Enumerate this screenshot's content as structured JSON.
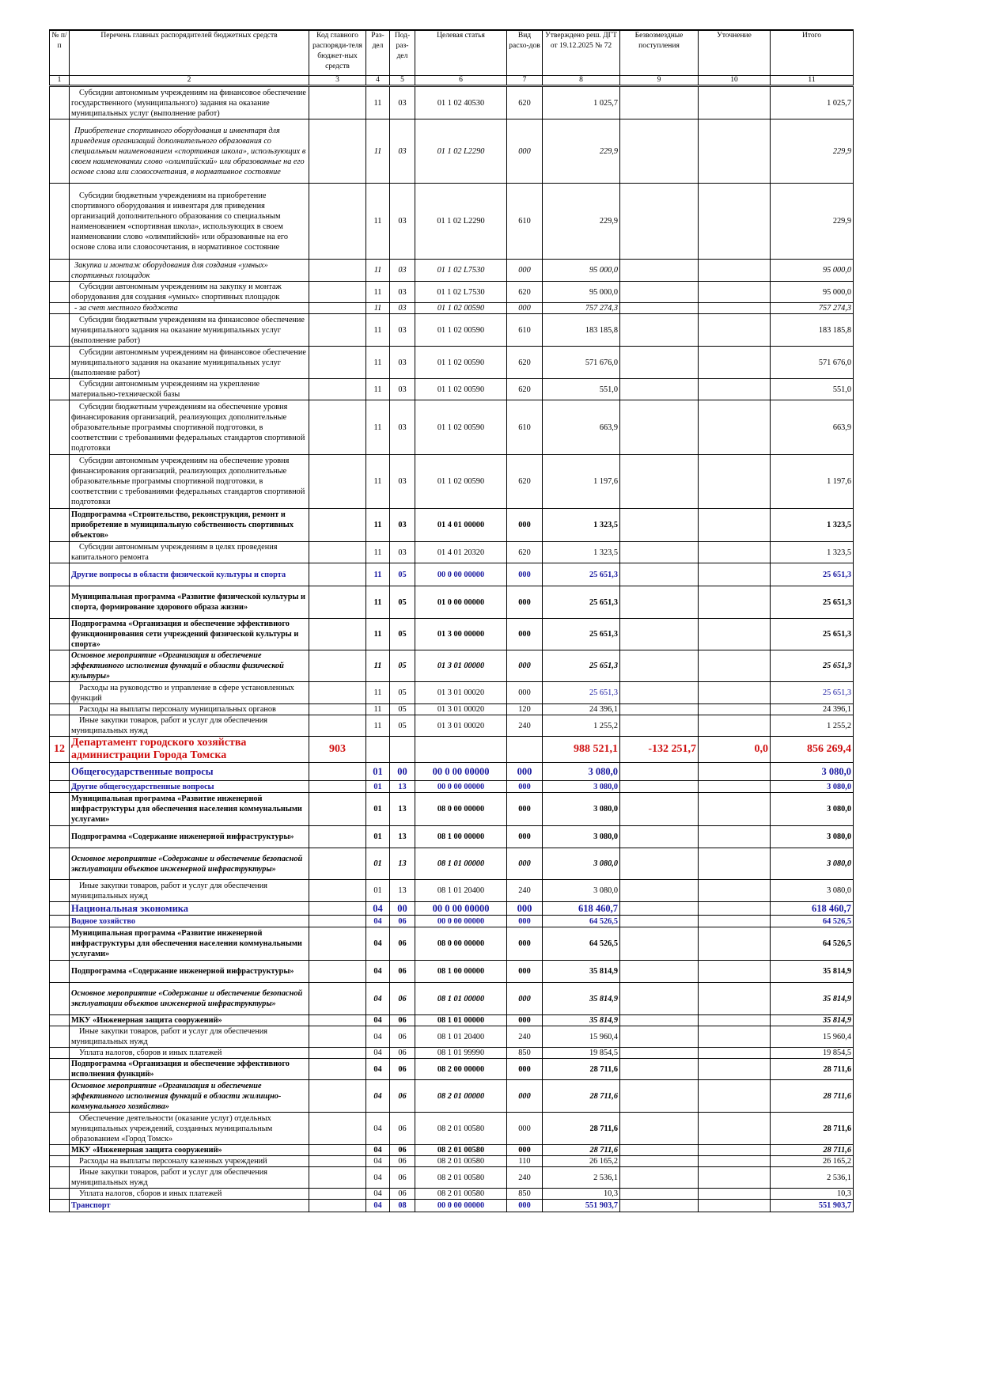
{
  "table": {
    "header": [
      "№ п/п",
      "Перечень главных распорядителей бюджетных средств",
      "Код главного распоряди-теля бюджет-ных средств",
      "Раз-дел",
      "Под-раз-дел",
      "Целевая статья",
      "Вид расхо-дов",
      "Утверждено реш. ДГТ от 19.12.2025 № 72",
      "Безвозмездные поступления",
      "Уточнение",
      "Итого"
    ],
    "numbers": [
      "1",
      "2",
      "3",
      "4",
      "5",
      "6",
      "7",
      "8",
      "9",
      "10",
      "11"
    ],
    "rows": [
      [
        null,
        "Субсидии автономным учреждениям на финансовое обеспечение государственного (муниципального) задания на оказание муниципальных услуг (выполнение работ)",
        null,
        "11",
        "03",
        "01 1 02 40530",
        "620",
        "1 025,7",
        null,
        null,
        "1 025,7"
      ],
      [
        null,
        "Приобретение спортивного оборудования и инвентаря для приведения организаций дополнительного образования со специальным наименованием «спортивная школа», использующих в своем наименовании слово «олимпийский» или образованные на его основе слова или словосочетания, в нормативное состояние",
        null,
        "11",
        "03",
        "01 1 02 L2290",
        "000",
        "229,9",
        null,
        null,
        "229,9"
      ],
      [
        null,
        "Субсидии бюджетным учреждениям на приобретение спортивного оборудования и инвентаря для приведения организаций дополнительного образования со специальным наименованием «спортивная школа», использующих в своем наименовании слово «олимпийский» или образованные на его основе слова или словосочетания, в нормативное состояние",
        null,
        "11",
        "03",
        "01 1 02 L2290",
        "610",
        "229,9",
        null,
        null,
        "229,9"
      ],
      [
        null,
        "Закупка и монтаж оборудования для создания «умных» спортивных площадок",
        null,
        "11",
        "03",
        "01 1 02 L7530",
        "000",
        "95 000,0",
        null,
        null,
        "95 000,0"
      ],
      [
        null,
        "Субсидии автономным учреждениям на закупку и монтаж оборудования для создания «умных» спортивных площадок",
        null,
        "11",
        "03",
        "01 1 02 L7530",
        "620",
        "95 000,0",
        null,
        null,
        "95 000,0"
      ],
      [
        null,
        "- за счет местного бюджета",
        null,
        "11",
        "03",
        "01 1 02 00590",
        "000",
        "757 274,3",
        null,
        null,
        "757 274,3"
      ],
      [
        null,
        "Субсидии бюджетным учреждениям на финансовое обеспечение муниципального задания на оказание муниципальных услуг (выполнение работ)",
        null,
        "11",
        "03",
        "01 1 02 00590",
        "610",
        "183 185,8",
        null,
        null,
        "183 185,8"
      ],
      [
        null,
        "Субсидии автономным учреждениям на финансовое обеспечение муниципального задания на оказание муниципальных услуг (выполнение работ)",
        null,
        "11",
        "03",
        "01 1 02 00590",
        "620",
        "571 676,0",
        null,
        null,
        "571 676,0"
      ],
      [
        null,
        "Субсидии автономным учреждениям на укрепление материально-технической базы",
        null,
        "11",
        "03",
        "01 1 02 00590",
        "620",
        "551,0",
        null,
        null,
        "551,0"
      ],
      [
        null,
        "Субсидии бюджетным учреждениям на обеспечение уровня финансирования организаций, реализующих дополнительные образовательные программы спортивной подготовки, в соответствии с требованиями федеральных стандартов спортивной подготовки",
        null,
        "11",
        "03",
        "01 1 02 00590",
        "610",
        "663,9",
        null,
        null,
        "663,9"
      ],
      [
        null,
        "Субсидии автономным учреждениям на обеспечение уровня финансирования организаций, реализующих дополнительные образовательные программы спортивной подготовки, в соответствии с требованиями федеральных стандартов спортивной подготовки",
        null,
        "11",
        "03",
        "01 1 02 00590",
        "620",
        "1 197,6",
        null,
        null,
        "1 197,6"
      ],
      [
        null,
        "Подпрограмма «Строительство, реконструкция, ремонт и приобретение в муниципальную собственность спортивных объектов»",
        null,
        "11",
        "03",
        "01 4 01 00000",
        "000",
        "1 323,5",
        null,
        null,
        "1 323,5"
      ],
      [
        null,
        "Субсидии автономным учреждениям в целях проведения капитального ремонта",
        null,
        "11",
        "03",
        "01 4 01 20320",
        "620",
        "1 323,5",
        null,
        null,
        "1 323,5"
      ],
      [
        null,
        "Другие вопросы в области физической культуры и спорта",
        null,
        "11",
        "05",
        "00 0 00 00000",
        "000",
        "25 651,3",
        null,
        null,
        "25 651,3"
      ],
      [
        null,
        "Муниципальная программа «Развитие физической культуры и спорта, формирование здорового образа жизни»",
        null,
        "11",
        "05",
        "01 0 00 00000",
        "000",
        "25 651,3",
        null,
        null,
        "25 651,3"
      ],
      [
        null,
        "Подпрограмма «Организация и обеспечение эффективного функционирования сети учреждений физической культуры и спорта»",
        null,
        "11",
        "05",
        "01 3 00 00000",
        "000",
        "25 651,3",
        null,
        null,
        "25 651,3"
      ],
      [
        null,
        "Основное мероприятие «Организация и обеспечение эффективного исполнения функций в области физической культуры»",
        null,
        "11",
        "05",
        "01 3 01 00000",
        "000",
        "25 651,3",
        null,
        null,
        "25 651,3"
      ],
      [
        null,
        "Расходы на руководство и управление в сфере установленных функций",
        null,
        "11",
        "05",
        "01 3 01 00020",
        "000",
        "25 651,3",
        null,
        null,
        "25 651,3"
      ],
      [
        null,
        "Расходы на выплаты персоналу муниципальных органов",
        null,
        "11",
        "05",
        "01 3 01 00020",
        "120",
        "24 396,1",
        null,
        null,
        "24 396,1"
      ],
      [
        null,
        "Иные закупки товаров, работ и услуг для обеспечения муниципальных нужд",
        null,
        "11",
        "05",
        "01 3 01 00020",
        "240",
        "1 255,2",
        null,
        null,
        "1 255,2"
      ],
      [
        "12",
        "Департамент городского хозяйства администрации Города Томска",
        "903",
        null,
        null,
        null,
        null,
        "988 521,1",
        "-132 251,7",
        "0,0",
        "856 269,4"
      ],
      [
        null,
        "Общегосударственные вопросы",
        null,
        "01",
        "00",
        "00 0 00 00000",
        "000",
        "3 080,0",
        null,
        null,
        "3 080,0"
      ],
      [
        null,
        "Другие общегосударственные вопросы",
        null,
        "01",
        "13",
        "00 0 00 00000",
        "000",
        "3 080,0",
        null,
        null,
        "3 080,0"
      ],
      [
        null,
        "Муниципальная программа «Развитие инженерной инфраструктуры для обеспечения населения коммунальными услугами»",
        null,
        "01",
        "13",
        "08 0 00 00000",
        "000",
        "3 080,0",
        null,
        null,
        "3 080,0"
      ],
      [
        null,
        "Подпрограмма «Содержание инженерной инфраструктуры»",
        null,
        "01",
        "13",
        "08 1 00 00000",
        "000",
        "3 080,0",
        null,
        null,
        "3 080,0"
      ],
      [
        null,
        "Основное мероприятие «Содержание и обеспечение безопасной эксплуатации объектов инженерной инфраструктуры»",
        null,
        "01",
        "13",
        "08 1 01 00000",
        "000",
        "3 080,0",
        null,
        null,
        "3 080,0"
      ],
      [
        null,
        "Иные закупки товаров, работ и услуг для обеспечения муниципальных нужд",
        null,
        "01",
        "13",
        "08 1 01 20400",
        "240",
        "3 080,0",
        null,
        null,
        "3 080,0"
      ],
      [
        null,
        "Национальная экономика",
        null,
        "04",
        "00",
        "00 0 00 00000",
        "000",
        "618 460,7",
        null,
        null,
        "618 460,7"
      ],
      [
        null,
        "Водное хозяйство",
        null,
        "04",
        "06",
        "00 0 00 00000",
        "000",
        "64 526,5",
        null,
        null,
        "64 526,5"
      ],
      [
        null,
        "Муниципальная программа «Развитие инженерной инфраструктуры для обеспечения населения коммунальными услугами»",
        null,
        "04",
        "06",
        "08 0 00 00000",
        "000",
        "64 526,5",
        null,
        null,
        "64 526,5"
      ],
      [
        null,
        "Подпрограмма «Содержание инженерной инфраструктуры»",
        null,
        "04",
        "06",
        "08 1 00 00000",
        "000",
        "35 814,9",
        null,
        null,
        "35 814,9"
      ],
      [
        null,
        "Основное мероприятие «Содержание и обеспечение безопасной эксплуатации объектов инженерной инфраструктуры»",
        null,
        "04",
        "06",
        "08 1 01 00000",
        "000",
        "35 814,9",
        null,
        null,
        "35 814,9"
      ],
      [
        null,
        "МКУ «Инженерная защита сооружений»",
        null,
        "04",
        "06",
        "08 1 01 00000",
        "000",
        "35 814,9",
        null,
        null,
        "35 814,9"
      ],
      [
        null,
        "Иные закупки товаров, работ и услуг для обеспечения муниципальных нужд",
        null,
        "04",
        "06",
        "08 1 01 20400",
        "240",
        "15 960,4",
        null,
        null,
        "15 960,4"
      ],
      [
        null,
        "Уплата налогов, сборов и иных платежей",
        null,
        "04",
        "06",
        "08 1 01 99990",
        "850",
        "19 854,5",
        null,
        null,
        "19 854,5"
      ],
      [
        null,
        "Подпрограмма «Организация и обеспечение эффективного исполнения функций»",
        null,
        "04",
        "06",
        "08 2 00 00000",
        "000",
        "28 711,6",
        null,
        null,
        "28 711,6"
      ],
      [
        null,
        "Основное мероприятие «Организация и обеспечение эффективного исполнения функций в области жилищно-коммунального хозяйства»",
        null,
        "04",
        "06",
        "08 2 01 00000",
        "000",
        "28 711,6",
        null,
        null,
        "28 711,6"
      ],
      [
        null,
        "Обеспечение деятельности (оказание услуг) отдельных муниципальных учреждений, созданных муниципальным образованием «Город Томск»",
        null,
        "04",
        "06",
        "08 2 01 00580",
        "000",
        "28 711,6",
        null,
        null,
        "28 711,6"
      ],
      [
        null,
        "МКУ «Инженерная защита сооружений»",
        null,
        "04",
        "06",
        "08 2 01 00580",
        "000",
        "28 711,6",
        null,
        null,
        "28 711,6"
      ],
      [
        null,
        "Расходы на выплаты персоналу казенных учреждений",
        null,
        "04",
        "06",
        "08 2 01 00580",
        "110",
        "26 165,2",
        null,
        null,
        "26 165,2"
      ],
      [
        null,
        "Иные закупки товаров, работ и услуг для обеспечения муниципальных нужд",
        null,
        "04",
        "06",
        "08 2 01 00580",
        "240",
        "2 536,1",
        null,
        null,
        "2 536,1"
      ],
      [
        null,
        "Уплата налогов, сборов и иных платежей",
        null,
        "04",
        "06",
        "08 2 01 00580",
        "850",
        "10,3",
        null,
        null,
        "10,3"
      ],
      [
        null,
        "Транспорт",
        null,
        "04",
        "08",
        "00 0 00 00000",
        "000",
        "551 903,7",
        null,
        null,
        "551 903,7"
      ]
    ]
  }
}
